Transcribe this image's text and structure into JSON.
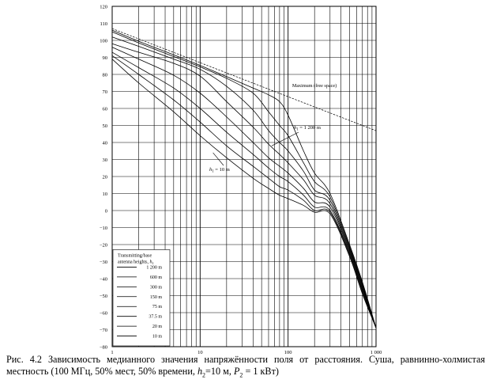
{
  "chart_data": {
    "type": "line",
    "x_scale": "log",
    "xlim": [
      1,
      1000
    ],
    "ylim": [
      -80,
      120
    ],
    "x_ticks": [
      1,
      10,
      100,
      1000
    ],
    "x_tick_labels": [
      "1",
      "10",
      "100",
      "1 000"
    ],
    "y_ticks": [
      -80,
      -70,
      -60,
      -50,
      -40,
      -30,
      -20,
      -10,
      0,
      10,
      20,
      30,
      40,
      50,
      60,
      70,
      80,
      90,
      100,
      110,
      120
    ],
    "grid": true,
    "free_space": {
      "label": "Maximum (free space)",
      "x": [
        1,
        1000
      ],
      "y": [
        106.9,
        46.9
      ]
    },
    "series": [
      {
        "name": "1 200 m",
        "x": [
          1,
          2,
          5,
          10,
          20,
          40,
          60,
          80,
          100,
          150,
          200,
          300,
          500,
          700,
          1000
        ],
        "y": [
          106,
          99.5,
          91.5,
          85.3,
          78.7,
          72.0,
          68.0,
          64.0,
          56.0,
          35.0,
          22.0,
          10.0,
          -20.0,
          -42.0,
          -69.0
        ]
      },
      {
        "name": "600 m",
        "x": [
          1,
          2,
          5,
          10,
          20,
          40,
          60,
          80,
          100,
          150,
          200,
          300,
          500,
          700,
          1000
        ],
        "y": [
          105,
          98.5,
          90.5,
          84.4,
          77.7,
          69.0,
          58.0,
          50.0,
          44.0,
          28.0,
          17.0,
          8.0,
          -21.0,
          -43.0,
          -69.0
        ]
      },
      {
        "name": "300 m",
        "x": [
          1,
          2,
          5,
          10,
          20,
          40,
          60,
          80,
          100,
          150,
          200,
          300,
          500,
          700,
          1000
        ],
        "y": [
          102,
          96.5,
          89.0,
          83.0,
          73.0,
          59.0,
          47.0,
          40.0,
          35.0,
          23.0,
          12.0,
          6.0,
          -22.0,
          -44.0,
          -69.0
        ]
      },
      {
        "name": "150 m",
        "x": [
          1,
          2,
          5,
          10,
          20,
          40,
          60,
          80,
          100,
          150,
          200,
          300,
          500,
          700,
          1000
        ],
        "y": [
          98,
          93.0,
          86.5,
          79.0,
          64.0,
          49.0,
          39.0,
          33.0,
          28.0,
          18.0,
          9.0,
          4.0,
          -23.0,
          -45.0,
          -69.0
        ]
      },
      {
        "name": "75 m",
        "x": [
          1,
          2,
          5,
          10,
          20,
          40,
          60,
          80,
          100,
          150,
          200,
          300,
          500,
          700,
          1000
        ],
        "y": [
          96,
          89.0,
          79.5,
          69.0,
          55.0,
          40.0,
          31.0,
          26.0,
          22.0,
          13.0,
          5.0,
          2.0,
          -24.0,
          -46.0,
          -69.0
        ]
      },
      {
        "name": "37.5 m",
        "x": [
          1,
          2,
          5,
          10,
          20,
          40,
          60,
          80,
          100,
          150,
          200,
          300,
          500,
          700,
          1000
        ],
        "y": [
          93,
          84.0,
          72.0,
          60.0,
          46.0,
          33.0,
          25.0,
          20.0,
          17.0,
          9.0,
          2.0,
          0.0,
          -25.0,
          -47.0,
          -69.0
        ]
      },
      {
        "name": "20 m",
        "x": [
          1,
          2,
          5,
          10,
          20,
          40,
          60,
          80,
          100,
          150,
          200,
          300,
          500,
          700,
          1000
        ],
        "y": [
          91,
          80.0,
          65.0,
          52.0,
          38.0,
          26.0,
          19.0,
          14.0,
          12.0,
          6.0,
          0.0,
          -1.0,
          -26.0,
          -48.0,
          -69.0
        ]
      },
      {
        "name": "10 m",
        "x": [
          1,
          2,
          5,
          10,
          20,
          40,
          60,
          80,
          100,
          150,
          200,
          300,
          500,
          700,
          1000
        ],
        "y": [
          89,
          75.0,
          58.0,
          44.0,
          31.0,
          19.0,
          13.0,
          9.0,
          7.0,
          3.0,
          -1.0,
          -2.0,
          -27.0,
          -49.0,
          -69.0
        ]
      }
    ],
    "annotations": [
      {
        "text": "h",
        "sub": "1",
        "rest": " = 1 200 m",
        "x": 70,
        "y": 52.0
      },
      {
        "text": "h",
        "sub": "1",
        "rest": " = 10 m",
        "x": 10.8,
        "y": 26.0
      }
    ],
    "legend": {
      "title_line1": "Transmitting/base",
      "title_line2": "antenna heights, ",
      "title_var": "h",
      "title_sub": "1",
      "placement": "bottom-left",
      "entries": [
        "1 200 m",
        "600 m",
        "300 m",
        "150 m",
        "75 m",
        "37.5 m",
        "20 m",
        "10 m"
      ]
    }
  },
  "caption": {
    "part1": "Рис. 4.2 Зависимость медианного значения напряжённости поля от расстояния. Суша, равнинно-холмистая местность (100 МГц, 50% мест, 50% времени, ",
    "var_h": "h",
    "sub_2": "2",
    "eq_h": "=10 м,    ",
    "var_p": "P",
    "eq_p": " = 1 кВт)"
  }
}
